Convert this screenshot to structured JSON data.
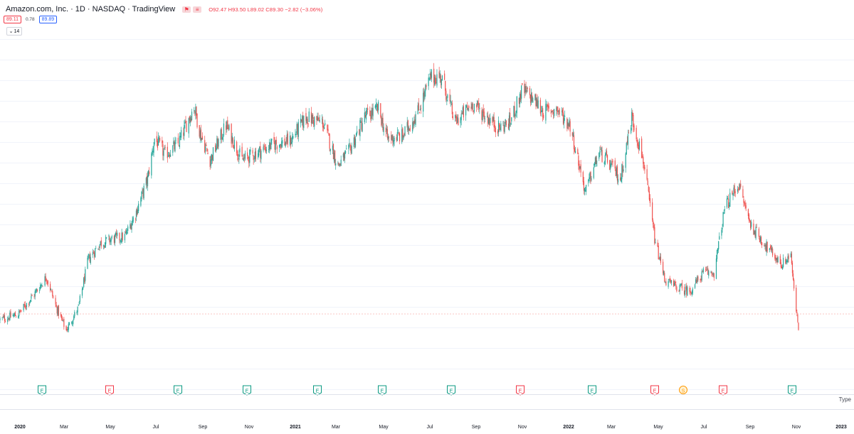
{
  "header": {
    "symbol_title": "Amazon.com, Inc. · 1D · NASDAQ · TradingView",
    "ohlc_text": "O92.47 H93.50 L89.02 C89.30 −2.82 (−3.06%)"
  },
  "trade": {
    "sell_price": "89.11",
    "spread": "0.78",
    "buy_price": "89.89"
  },
  "indicator_toggle": {
    "count": "14"
  },
  "bottom_pane": {
    "type_label": "Type"
  },
  "colors": {
    "up": "#26a69a",
    "down": "#ef5350",
    "grid": "#f0f3fa"
  },
  "chart_data": {
    "type": "candlestick",
    "symbol": "AMZN",
    "interval": "1D",
    "ylim": [
      70,
      200
    ],
    "x": [
      "2019-12-20",
      "2020-01-13",
      "2020-02-03",
      "2020-02-19",
      "2020-03-03",
      "2020-03-16",
      "2020-04-01",
      "2020-04-14",
      "2020-04-30",
      "2020-05-15",
      "2020-06-01",
      "2020-06-15",
      "2020-07-01",
      "2020-07-10",
      "2020-07-24",
      "2020-08-10",
      "2020-08-31",
      "2020-09-08",
      "2020-09-21",
      "2020-10-12",
      "2020-11-02",
      "2020-11-23",
      "2020-12-14",
      "2021-01-04",
      "2021-01-25",
      "2021-02-16",
      "2021-03-08",
      "2021-03-22",
      "2021-04-12",
      "2021-04-30",
      "2021-05-12",
      "2021-06-01",
      "2021-06-21",
      "2021-07-08",
      "2021-07-22",
      "2021-08-09",
      "2021-09-01",
      "2021-09-20",
      "2021-10-05",
      "2021-10-20",
      "2021-11-05",
      "2021-11-19",
      "2021-12-03",
      "2021-12-20",
      "2022-01-07",
      "2022-01-27",
      "2022-02-14",
      "2022-03-01",
      "2022-03-14",
      "2022-03-29",
      "2022-04-13",
      "2022-04-29",
      "2022-05-12",
      "2022-05-24",
      "2022-06-13",
      "2022-07-01",
      "2022-07-15",
      "2022-07-29",
      "2022-08-16",
      "2022-09-01",
      "2022-09-21",
      "2022-10-12",
      "2022-10-24",
      "2022-10-28",
      "2022-11-03"
    ],
    "close": [
      92.5,
      94.5,
      102,
      108.5,
      97,
      88.5,
      97,
      115,
      121,
      122.5,
      123.5,
      132,
      145,
      160,
      154,
      158,
      172,
      162,
      152,
      165,
      152,
      155,
      158,
      159,
      168,
      166,
      150,
      155,
      168,
      171,
      160,
      161,
      170,
      183,
      183,
      166,
      173,
      168,
      164,
      166,
      178,
      175,
      170,
      171,
      165,
      140,
      155,
      150,
      145,
      168,
      152,
      121,
      107,
      105,
      103,
      110,
      110,
      134,
      143,
      128,
      120,
      113,
      117,
      103,
      89.3
    ]
  },
  "chart_axis": {
    "time_labels": [
      "2020",
      "Mar",
      "May",
      "Jul",
      "Sep",
      "Nov",
      "2021",
      "Mar",
      "May",
      "Jul",
      "Sep",
      "Nov",
      "2022",
      "Mar",
      "May",
      "Jul",
      "Sep",
      "Nov",
      "2023"
    ],
    "event_badges": [
      "E",
      "E",
      "E",
      "E",
      "E",
      "E",
      "E",
      "E",
      "E",
      "E",
      "S",
      "E",
      "E"
    ],
    "event_badge_colors": [
      "#089981",
      "#f23645",
      "#089981",
      "#089981",
      "#089981",
      "#089981",
      "#089981",
      "#f23645",
      "#089981",
      "#f23645",
      "#ff9800",
      "#f23645",
      "#089981"
    ]
  }
}
